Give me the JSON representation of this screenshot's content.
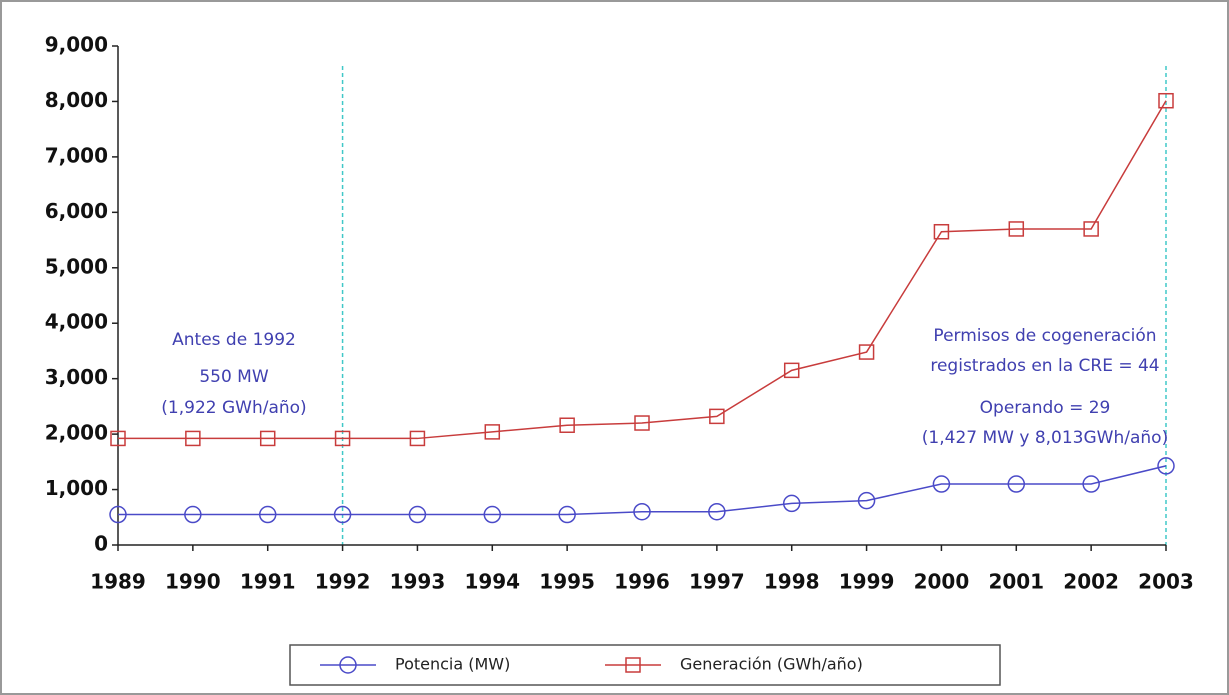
{
  "chart_data": {
    "type": "line",
    "categories": [
      "1989",
      "1990",
      "1991",
      "1992",
      "1993",
      "1994",
      "1995",
      "1996",
      "1997",
      "1998",
      "1999",
      "2000",
      "2001",
      "2002",
      "2003"
    ],
    "series": [
      {
        "name": "Potencia (MW)",
        "color": "#4a4ac8",
        "marker": "circle",
        "values": [
          550,
          550,
          550,
          550,
          550,
          550,
          550,
          600,
          600,
          750,
          800,
          1100,
          1100,
          1100,
          1427
        ]
      },
      {
        "name": "Generación (GWh/año)",
        "color": "#c83c3c",
        "marker": "square",
        "values": [
          1922,
          1922,
          1922,
          1922,
          1922,
          2040,
          2160,
          2200,
          2320,
          3150,
          3480,
          5650,
          5700,
          5700,
          8013
        ]
      }
    ],
    "ylim": [
      0,
      9000
    ],
    "yticks": [
      0,
      {
        "value": 1000,
        "label": "1,000"
      },
      {
        "value": 2000,
        "label": "2,000"
      },
      {
        "value": 3000,
        "label": "3,000"
      },
      {
        "value": 4000,
        "label": "4,000"
      },
      {
        "value": 5000,
        "label": "5,000"
      },
      {
        "value": 6000,
        "label": "6,000"
      },
      {
        "value": 7000,
        "label": "7,000"
      },
      {
        "value": 8000,
        "label": "8,000"
      },
      {
        "value": 9000,
        "label": "9,000"
      }
    ],
    "annotations": [
      [
        "Antes de 1992",
        "550 MW",
        "(1,922 GWh/año)"
      ],
      [
        "Permisos de cogeneración",
        "registrados en la CRE = 44",
        "Operando = 29",
        "(1,427 MW y 8,013GWh/año)"
      ]
    ]
  }
}
